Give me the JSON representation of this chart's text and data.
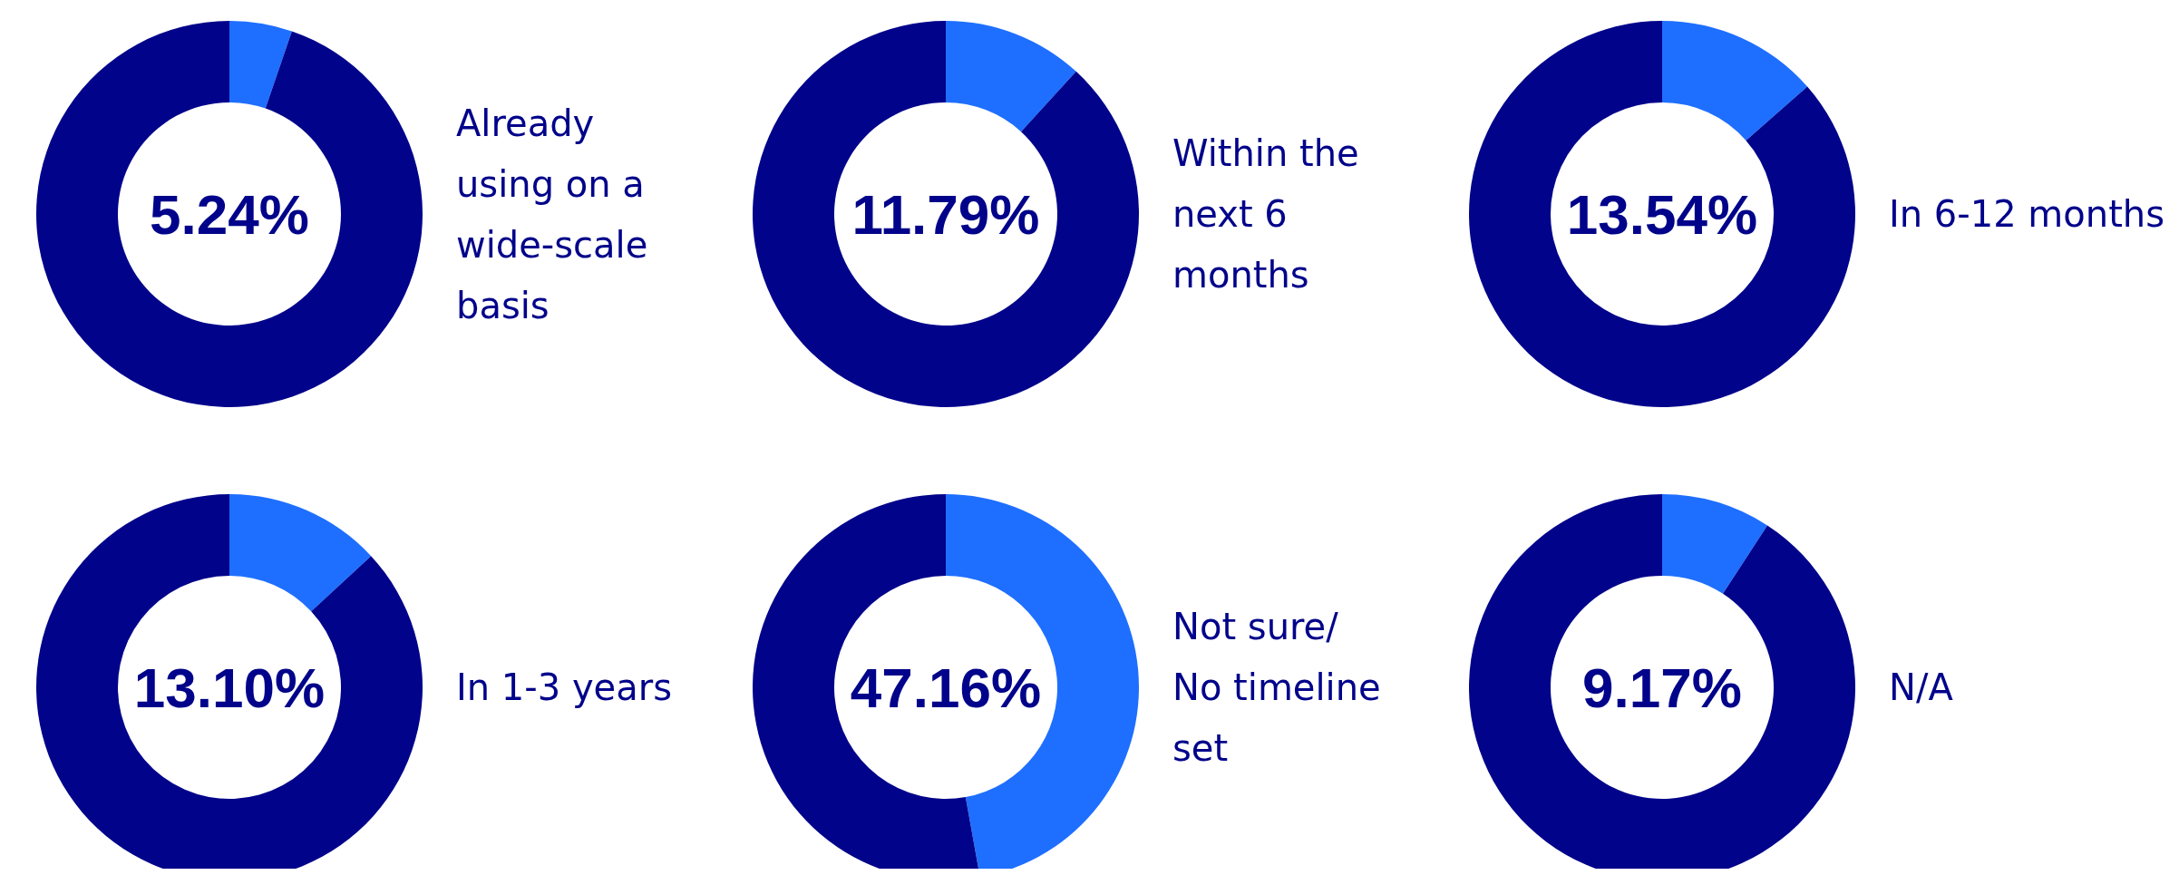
{
  "chart_data": [
    {
      "type": "donut",
      "title": "Already using on a wide-scale basis",
      "categories": [
        null,
        null
      ],
      "values": [
        5.24,
        94.76
      ],
      "colors": [
        "#1e6fff",
        "#01038a"
      ],
      "annotations": [
        "5.24%"
      ]
    },
    {
      "type": "donut",
      "title": "Within the next 6 months",
      "categories": [
        null,
        null
      ],
      "values": [
        11.79,
        88.21
      ],
      "colors": [
        "#1e6fff",
        "#01038a"
      ],
      "annotations": [
        "11.79%"
      ]
    },
    {
      "type": "donut",
      "title": "In 6-12 months",
      "categories": [
        null,
        null
      ],
      "values": [
        13.54,
        86.46
      ],
      "colors": [
        "#1e6fff",
        "#01038a"
      ],
      "annotations": [
        "13.54%"
      ]
    },
    {
      "type": "donut",
      "title": "In 1-3 years",
      "categories": [
        null,
        null
      ],
      "values": [
        13.1,
        86.9
      ],
      "colors": [
        "#1e6fff",
        "#01038a"
      ],
      "annotations": [
        "13.10%"
      ]
    },
    {
      "type": "donut",
      "title": "Not sure/ No timeline set",
      "categories": [
        null,
        null
      ],
      "values": [
        47.16,
        52.84
      ],
      "colors": [
        "#1e6fff",
        "#01038a"
      ],
      "annotations": [
        "47.16%"
      ]
    },
    {
      "type": "donut",
      "title": "N/A",
      "categories": [
        null,
        null
      ],
      "values": [
        9.17,
        90.83
      ],
      "colors": [
        "#1e6fff",
        "#01038a"
      ],
      "annotations": [
        "9.17%"
      ]
    }
  ]
}
